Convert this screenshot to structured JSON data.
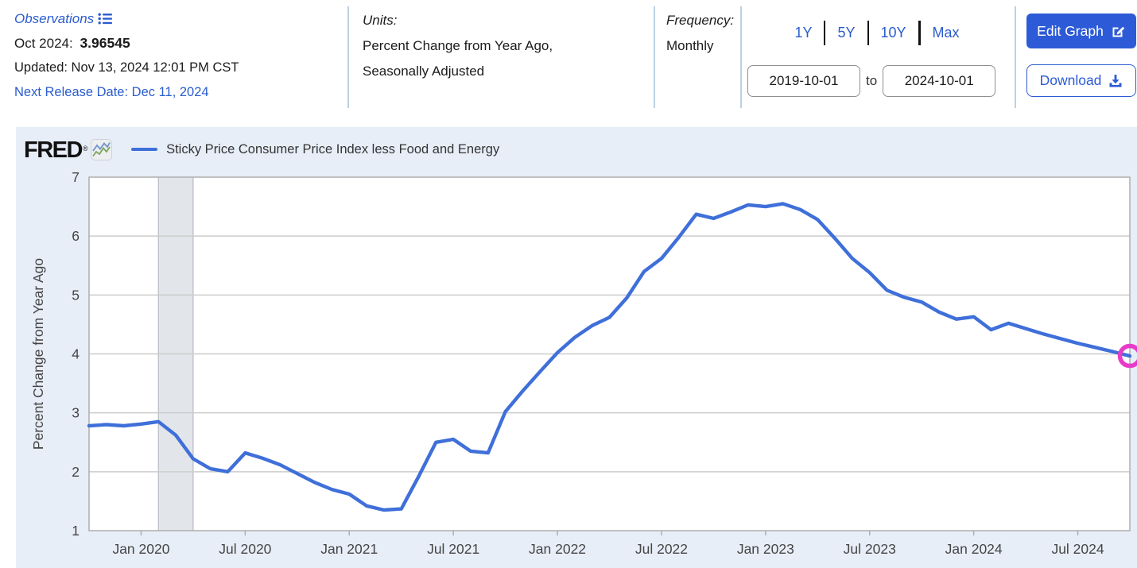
{
  "header": {
    "observations_label": "Observations",
    "latest_date_label": "Oct 2024:",
    "latest_value": "3.96545",
    "updated_line": "Updated: Nov 13, 2024 12:01 PM CST",
    "next_release_line": "Next Release Date: Dec 11, 2024",
    "units_label": "Units:",
    "units_line1": "Percent Change from Year Ago,",
    "units_line2": "Seasonally Adjusted",
    "frequency_label": "Frequency:",
    "frequency_value": "Monthly",
    "ranges": [
      "1Y",
      "5Y",
      "10Y",
      "Max"
    ],
    "date_from": "2019-10-01",
    "date_to_label": "to",
    "date_to": "2024-10-01",
    "edit_graph_label": "Edit Graph",
    "download_label": "Download"
  },
  "chart": {
    "brand": "FRED",
    "registered_mark": "®",
    "legend_label": "Sticky Price Consumer Price Index less Food and Energy"
  },
  "chart_data": {
    "type": "line",
    "title": "Sticky Price Consumer Price Index less Food and Energy",
    "ylabel": "Percent Change from Year Ago",
    "xlabel": "",
    "x_unit": "month",
    "x_range": [
      "2019-10",
      "2024-10"
    ],
    "months": 61,
    "ylim": [
      1,
      7
    ],
    "grid": true,
    "legend_position": "top-left",
    "y_ticks": [
      1,
      2,
      3,
      4,
      5,
      6,
      7
    ],
    "x_ticks": [
      {
        "m": 3,
        "label": "Jan 2020"
      },
      {
        "m": 9,
        "label": "Jul 2020"
      },
      {
        "m": 15,
        "label": "Jan 2021"
      },
      {
        "m": 21,
        "label": "Jul 2021"
      },
      {
        "m": 27,
        "label": "Jan 2022"
      },
      {
        "m": 33,
        "label": "Jul 2022"
      },
      {
        "m": 39,
        "label": "Jan 2023"
      },
      {
        "m": 45,
        "label": "Jul 2023"
      },
      {
        "m": 51,
        "label": "Jan 2024"
      },
      {
        "m": 57,
        "label": "Jul 2024"
      }
    ],
    "recession_band": {
      "from_month": 4,
      "to_month": 6
    },
    "series": [
      {
        "name": "Sticky Price Consumer Price Index less Food and Energy",
        "color": "#3f6fd9",
        "values": [
          2.78,
          2.8,
          2.78,
          2.81,
          2.85,
          2.62,
          2.22,
          2.05,
          2.0,
          2.32,
          2.23,
          2.12,
          1.97,
          1.82,
          1.7,
          1.62,
          1.42,
          1.35,
          1.37,
          1.92,
          2.5,
          2.55,
          2.35,
          2.32,
          3.02,
          3.37,
          3.7,
          4.02,
          4.28,
          4.48,
          4.62,
          4.95,
          5.4,
          5.62,
          5.98,
          6.37,
          6.3,
          6.41,
          6.53,
          6.5,
          6.55,
          6.45,
          6.28,
          5.96,
          5.62,
          5.38,
          5.08,
          4.96,
          4.88,
          4.71,
          4.59,
          4.63,
          4.41,
          4.52,
          4.43,
          4.34,
          4.26,
          4.18,
          4.11,
          4.04,
          3.96545
        ]
      }
    ],
    "highlight_last_point": {
      "month": 60,
      "value": 3.96545,
      "color": "#e93bc9"
    }
  },
  "colors": {
    "link_blue": "#2a5ccd",
    "accent_blue": "#2d5bd7",
    "line_blue": "#3f6fd9",
    "highlight_pink": "#e93bc9",
    "chart_bg": "#e8eef8",
    "plot_bg": "#ffffff",
    "gridline": "#cccccc",
    "plot_border": "#aeaeae",
    "recession_band": "#e2e6ea",
    "tick_text": "#454545"
  }
}
